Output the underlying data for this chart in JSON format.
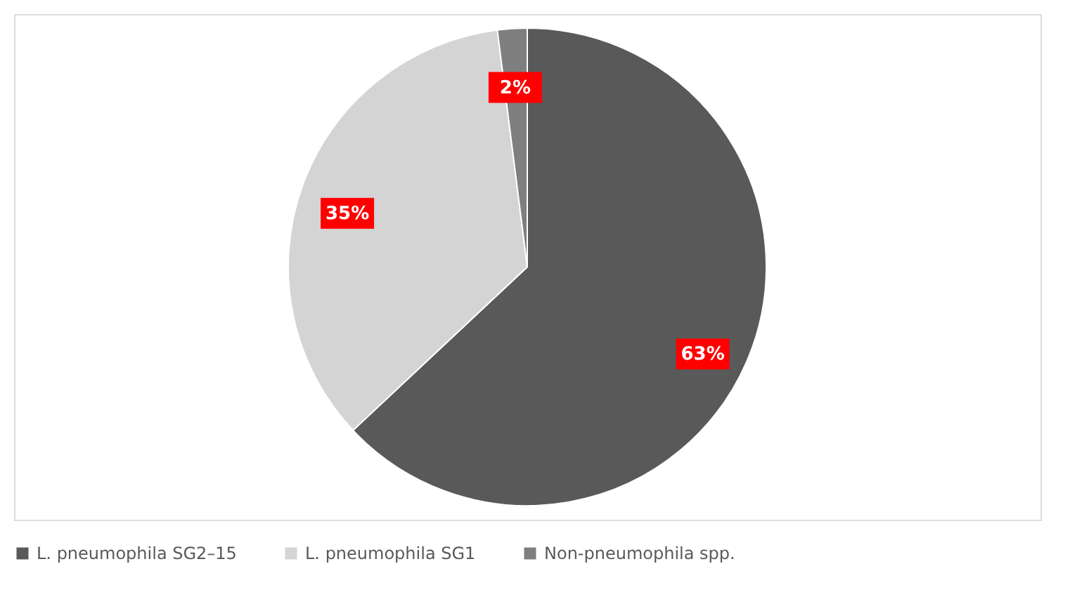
{
  "chart_data": {
    "type": "pie",
    "categories": [
      "L. pneumophila SG2–15",
      "L. pneumophila SG1",
      "Non-pneumophila spp."
    ],
    "values": [
      63,
      35,
      2
    ],
    "colors": [
      "#595959",
      "#d4d4d4",
      "#7f7f7f"
    ],
    "value_labels": [
      "63%",
      "35%",
      "2%"
    ],
    "legend": "bottom"
  }
}
